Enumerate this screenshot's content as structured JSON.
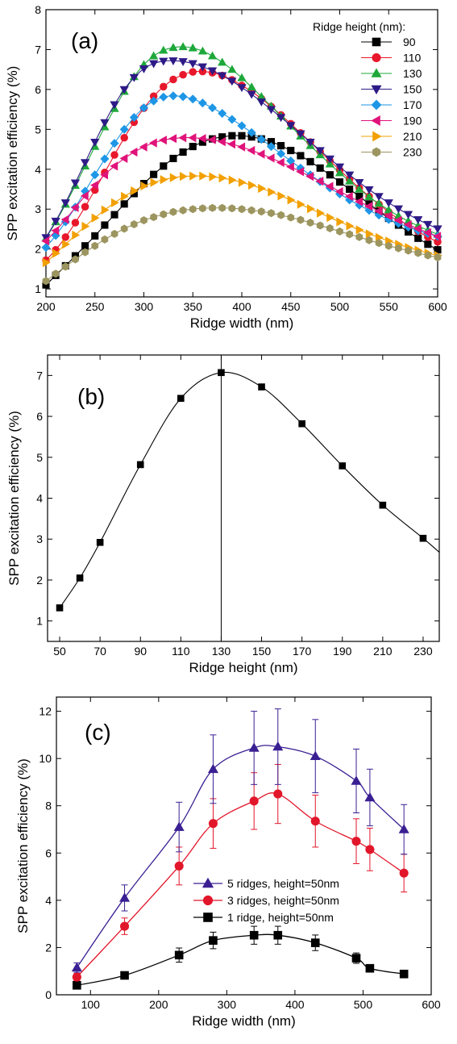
{
  "chart_data": [
    {
      "type": "line",
      "panel_label": "(a)",
      "xlabel": "Ridge width (nm)",
      "ylabel": "SPP excitation efficiency (%)",
      "xlim": [
        200,
        600
      ],
      "ylim": [
        0.8,
        8
      ],
      "xticks": [
        "200",
        "250",
        "300",
        "350",
        "400",
        "450",
        "500",
        "550",
        "600"
      ],
      "yticks": [
        "1",
        "2",
        "3",
        "4",
        "5",
        "6",
        "7",
        "8"
      ],
      "legend_title": "Ridge height (nm):",
      "legend_position": "top-right",
      "x": [
        200,
        210,
        220,
        230,
        240,
        250,
        260,
        270,
        280,
        290,
        300,
        310,
        320,
        330,
        340,
        350,
        360,
        370,
        380,
        390,
        400,
        410,
        420,
        430,
        440,
        450,
        460,
        470,
        480,
        490,
        500,
        510,
        520,
        530,
        540,
        550,
        560,
        570,
        580,
        590,
        600
      ],
      "series": [
        {
          "name": "90",
          "color": "#000000",
          "marker": "square",
          "values": [
            1.1,
            1.34,
            1.58,
            1.83,
            2.08,
            2.33,
            2.6,
            2.86,
            3.13,
            3.39,
            3.64,
            3.87,
            4.08,
            4.27,
            4.43,
            4.57,
            4.68,
            4.76,
            4.81,
            4.84,
            4.84,
            4.81,
            4.76,
            4.69,
            4.59,
            4.47,
            4.34,
            4.19,
            4.03,
            3.86,
            3.68,
            3.5,
            3.32,
            3.13,
            2.95,
            2.77,
            2.6,
            2.43,
            2.27,
            2.12,
            1.98
          ]
        },
        {
          "name": "110",
          "color": "#e8172b",
          "marker": "circle",
          "values": [
            1.72,
            1.98,
            2.3,
            2.66,
            3.06,
            3.48,
            3.92,
            4.36,
            4.79,
            5.18,
            5.53,
            5.83,
            6.07,
            6.25,
            6.37,
            6.44,
            6.45,
            6.42,
            6.35,
            6.24,
            6.1,
            5.95,
            5.77,
            5.57,
            5.36,
            5.14,
            4.91,
            4.68,
            4.44,
            4.21,
            3.98,
            3.75,
            3.53,
            3.32,
            3.12,
            2.93,
            2.75,
            2.59,
            2.44,
            2.3,
            2.18
          ]
        },
        {
          "name": "130",
          "color": "#1ea83a",
          "marker": "triangle-up",
          "values": [
            2.27,
            2.68,
            3.12,
            3.59,
            4.08,
            4.57,
            5.06,
            5.52,
            5.95,
            6.32,
            6.62,
            6.84,
            6.98,
            7.05,
            7.07,
            7.04,
            6.96,
            6.84,
            6.68,
            6.5,
            6.29,
            6.06,
            5.82,
            5.58,
            5.33,
            5.08,
            4.83,
            4.59,
            4.36,
            4.13,
            3.91,
            3.7,
            3.5,
            3.31,
            3.14,
            2.98,
            2.83,
            2.7,
            2.58,
            2.47,
            2.37
          ]
        },
        {
          "name": "150",
          "color": "#2e1a87",
          "marker": "triangle-down",
          "values": [
            2.29,
            2.7,
            3.16,
            3.66,
            4.17,
            4.68,
            5.17,
            5.62,
            6.0,
            6.3,
            6.52,
            6.65,
            6.71,
            6.72,
            6.7,
            6.65,
            6.57,
            6.47,
            6.35,
            6.21,
            6.05,
            5.88,
            5.69,
            5.5,
            5.3,
            5.1,
            4.89,
            4.68,
            4.47,
            4.26,
            4.06,
            3.86,
            3.67,
            3.49,
            3.32,
            3.16,
            3.01,
            2.87,
            2.74,
            2.62,
            2.51
          ]
        },
        {
          "name": "170",
          "color": "#1e96e6",
          "marker": "diamond",
          "values": [
            2.04,
            2.34,
            2.68,
            3.05,
            3.45,
            3.86,
            4.26,
            4.65,
            5.0,
            5.3,
            5.54,
            5.71,
            5.81,
            5.84,
            5.82,
            5.76,
            5.66,
            5.54,
            5.4,
            5.25,
            5.09,
            4.92,
            4.75,
            4.57,
            4.39,
            4.21,
            4.03,
            3.86,
            3.69,
            3.53,
            3.38,
            3.23,
            3.1,
            2.97,
            2.85,
            2.74,
            2.64,
            2.55,
            2.46,
            2.39,
            2.32
          ]
        },
        {
          "name": "190",
          "color": "#e0137a",
          "marker": "triangle-left",
          "values": [
            2.2,
            2.46,
            2.74,
            3.04,
            3.33,
            3.6,
            3.86,
            4.08,
            4.27,
            4.43,
            4.56,
            4.66,
            4.73,
            4.77,
            4.79,
            4.79,
            4.77,
            4.74,
            4.69,
            4.63,
            4.56,
            4.47,
            4.38,
            4.28,
            4.17,
            4.06,
            3.94,
            3.82,
            3.7,
            3.57,
            3.44,
            3.32,
            3.19,
            3.07,
            2.95,
            2.83,
            2.72,
            2.61,
            2.51,
            2.41,
            2.32
          ]
        },
        {
          "name": "210",
          "color": "#f2a000",
          "marker": "triangle-right",
          "values": [
            1.66,
            1.89,
            2.12,
            2.35,
            2.57,
            2.78,
            2.98,
            3.16,
            3.32,
            3.46,
            3.58,
            3.67,
            3.74,
            3.79,
            3.82,
            3.83,
            3.83,
            3.81,
            3.78,
            3.73,
            3.67,
            3.6,
            3.52,
            3.43,
            3.33,
            3.23,
            3.12,
            3.01,
            2.9,
            2.79,
            2.68,
            2.58,
            2.48,
            2.38,
            2.29,
            2.2,
            2.12,
            2.04,
            1.97,
            1.9,
            1.84
          ]
        },
        {
          "name": "230",
          "color": "#9c9560",
          "marker": "hexagon",
          "values": [
            1.2,
            1.38,
            1.56,
            1.74,
            1.92,
            2.08,
            2.24,
            2.38,
            2.51,
            2.62,
            2.72,
            2.8,
            2.87,
            2.93,
            2.97,
            3.0,
            3.02,
            3.03,
            3.03,
            3.02,
            3.0,
            2.97,
            2.94,
            2.9,
            2.85,
            2.79,
            2.73,
            2.66,
            2.59,
            2.52,
            2.44,
            2.37,
            2.3,
            2.22,
            2.15,
            2.08,
            2.02,
            1.96,
            1.9,
            1.84,
            1.79
          ]
        }
      ]
    },
    {
      "type": "line",
      "panel_label": "(b)",
      "xlabel": "Ridge height (nm)",
      "ylabel": "SPP excitation efficiency (%)",
      "xlim": [
        44,
        238
      ],
      "ylim": [
        0.5,
        7.5
      ],
      "xticks": [
        "50",
        "70",
        "90",
        "110",
        "130",
        "150",
        "170",
        "190",
        "210",
        "230"
      ],
      "yticks": [
        "1",
        "2",
        "3",
        "4",
        "5",
        "6",
        "7"
      ],
      "vertical_line_x": 130,
      "points": {
        "x": [
          50,
          60,
          70,
          90,
          110,
          130,
          150,
          170,
          190,
          210,
          230
        ],
        "y": [
          1.32,
          2.05,
          2.92,
          4.82,
          6.44,
          7.07,
          6.72,
          5.82,
          4.79,
          3.83,
          3.02
        ]
      }
    },
    {
      "type": "line",
      "panel_label": "(c)",
      "xlabel": "Ridge width (nm)",
      "ylabel": "SPP excitation efficiency (%)",
      "xlim": [
        50,
        600
      ],
      "ylim": [
        0,
        12.6
      ],
      "xticks": [
        "100",
        "200",
        "300",
        "400",
        "500",
        "600"
      ],
      "yticks": [
        "0",
        "2",
        "4",
        "6",
        "8",
        "10",
        "12"
      ],
      "legend_position": "lower-left",
      "series": [
        {
          "name": "5 ridges, height=50nm",
          "color": "#3a1f93",
          "marker": "triangle-up",
          "x": [
            80,
            150,
            230,
            280,
            340,
            375,
            430,
            490,
            510,
            560
          ],
          "y": [
            1.15,
            4.1,
            7.1,
            9.55,
            10.45,
            10.5,
            10.1,
            9.05,
            8.35,
            7.0
          ],
          "err": [
            0.2,
            0.55,
            1.05,
            1.45,
            1.55,
            1.6,
            1.55,
            1.35,
            1.2,
            1.05
          ]
        },
        {
          "name": "3 ridges, height=50nm",
          "color": "#e2162a",
          "marker": "circle",
          "x": [
            80,
            150,
            230,
            280,
            340,
            375,
            430,
            490,
            510,
            560
          ],
          "y": [
            0.75,
            2.9,
            5.45,
            7.25,
            8.2,
            8.5,
            7.35,
            6.5,
            6.15,
            5.15
          ],
          "err": [
            0.15,
            0.35,
            0.8,
            1.05,
            1.2,
            1.25,
            1.1,
            0.95,
            0.9,
            0.8
          ]
        },
        {
          "name": "1 ridge, height=50nm",
          "color": "#000000",
          "marker": "square",
          "x": [
            80,
            150,
            230,
            280,
            340,
            375,
            430,
            490,
            510,
            560
          ],
          "y": [
            0.4,
            0.82,
            1.68,
            2.3,
            2.52,
            2.52,
            2.2,
            1.55,
            1.12,
            0.88
          ],
          "err": [
            0.05,
            0.1,
            0.3,
            0.35,
            0.38,
            0.38,
            0.33,
            0.22,
            0.12,
            0.08
          ]
        }
      ]
    }
  ]
}
